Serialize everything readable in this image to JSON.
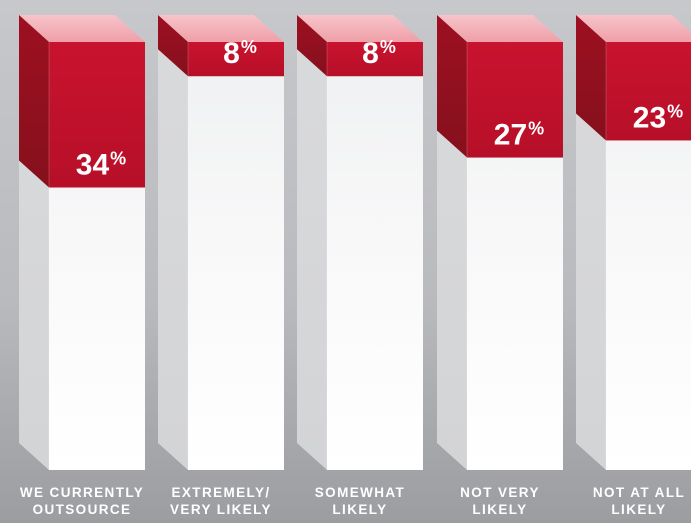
{
  "chart_data": {
    "type": "bar",
    "categories": [
      [
        "WE CURRENTLY",
        "OUTSOURCE"
      ],
      [
        "EXTREMELY/",
        "VERY LIKELY"
      ],
      [
        "SOMEWHAT",
        "LIKELY"
      ],
      [
        "NOT VERY",
        "LIKELY"
      ],
      [
        "NOT AT ALL",
        "LIKELY"
      ]
    ],
    "values": [
      34,
      8,
      8,
      27,
      23
    ],
    "data_labels": [
      "34",
      "8",
      "8",
      "27",
      "23"
    ],
    "value_suffix": "%",
    "ylim": [
      0,
      100
    ],
    "grid": false,
    "colors": {
      "fill_front": "#c4112c",
      "fill_side": "#96101f",
      "fill_top": "#f2b4bb",
      "empty_front_top": "#f0f1f2",
      "empty_front_bottom": "#ffffff",
      "empty_side": "#d7d8da",
      "empty_top": "#f7f7f8",
      "value_label": "#ffffff",
      "category_label": "#ffffff"
    }
  }
}
